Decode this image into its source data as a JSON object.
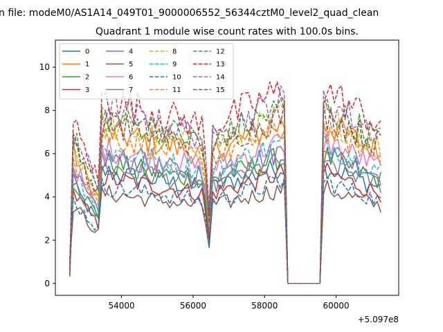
{
  "chart_data": {
    "type": "line",
    "suptitle": "n file: modeM0/AS1A14_049T01_9000006552_56344cztM0_level2_quad_clean",
    "title": "Quadrant 1 module wise count rates with 100.0s bins.",
    "xlabel": "",
    "ylabel": "",
    "x_offset_label": "+5.097e8",
    "xlim": [
      52150,
      61750
    ],
    "ylim": [
      -0.55,
      11.25
    ],
    "x_ticks": [
      54000,
      56000,
      58000,
      60000
    ],
    "x_tick_labels": [
      "54000",
      "56000",
      "58000",
      "60000"
    ],
    "y_ticks": [
      0,
      2,
      4,
      6,
      8,
      10
    ],
    "y_tick_labels": [
      "0",
      "2",
      "4",
      "6",
      "8",
      "10"
    ],
    "grid": false,
    "legend": {
      "position": "top-left",
      "columns": 4
    },
    "x_start": 52550,
    "x_step": 100,
    "segments": [
      {
        "start": 52550,
        "end": 53350,
        "type": "active",
        "decay_start": 0.9,
        "decay_end": 0.55
      },
      {
        "start": 53400,
        "end": 56250,
        "type": "active",
        "decay_start": 1.0,
        "decay_end": 0.85
      },
      {
        "start": 56300,
        "end": 56450,
        "type": "active",
        "decay_start": 0.8,
        "decay_end": 0.4
      },
      {
        "start": 56500,
        "end": 58600,
        "type": "active",
        "decay_start": 0.85,
        "decay_end": 1.05
      },
      {
        "start": 58700,
        "end": 59600,
        "type": "gap"
      },
      {
        "start": 59650,
        "end": 61250,
        "type": "active",
        "decay_start": 1.05,
        "decay_end": 0.85
      }
    ],
    "series": [
      {
        "name": "0",
        "color": "#1f77b4",
        "dash": false,
        "base": 5.2
      },
      {
        "name": "1",
        "color": "#ff7f0e",
        "dash": false,
        "base": 7.1
      },
      {
        "name": "2",
        "color": "#2ca02c",
        "dash": false,
        "base": 5.6
      },
      {
        "name": "3",
        "color": "#d62728",
        "dash": false,
        "base": 4.9
      },
      {
        "name": "4",
        "color": "#9467bd",
        "dash": false,
        "base": 5.9
      },
      {
        "name": "5",
        "color": "#8c564b",
        "dash": false,
        "base": 4.2
      },
      {
        "name": "6",
        "color": "#e377c2",
        "dash": false,
        "base": 6.3
      },
      {
        "name": "7",
        "color": "#7f7f7f",
        "dash": false,
        "base": 5.4
      },
      {
        "name": "8",
        "color": "#bcbd22",
        "dash": true,
        "base": 7.4
      },
      {
        "name": "9",
        "color": "#17becf",
        "dash": true,
        "base": 6.2
      },
      {
        "name": "10",
        "color": "#1f77b4",
        "dash": true,
        "base": 4.5
      },
      {
        "name": "11",
        "color": "#ff7f0e",
        "dash": true,
        "base": 6.9
      },
      {
        "name": "12",
        "color": "#2ca02c",
        "dash": true,
        "base": 7.8
      },
      {
        "name": "13",
        "color": "#d62728",
        "dash": true,
        "base": 8.6
      },
      {
        "name": "14",
        "color": "#9467bd",
        "dash": true,
        "base": 8.1
      },
      {
        "name": "15",
        "color": "#8c564b",
        "dash": true,
        "base": 7.5
      }
    ]
  }
}
